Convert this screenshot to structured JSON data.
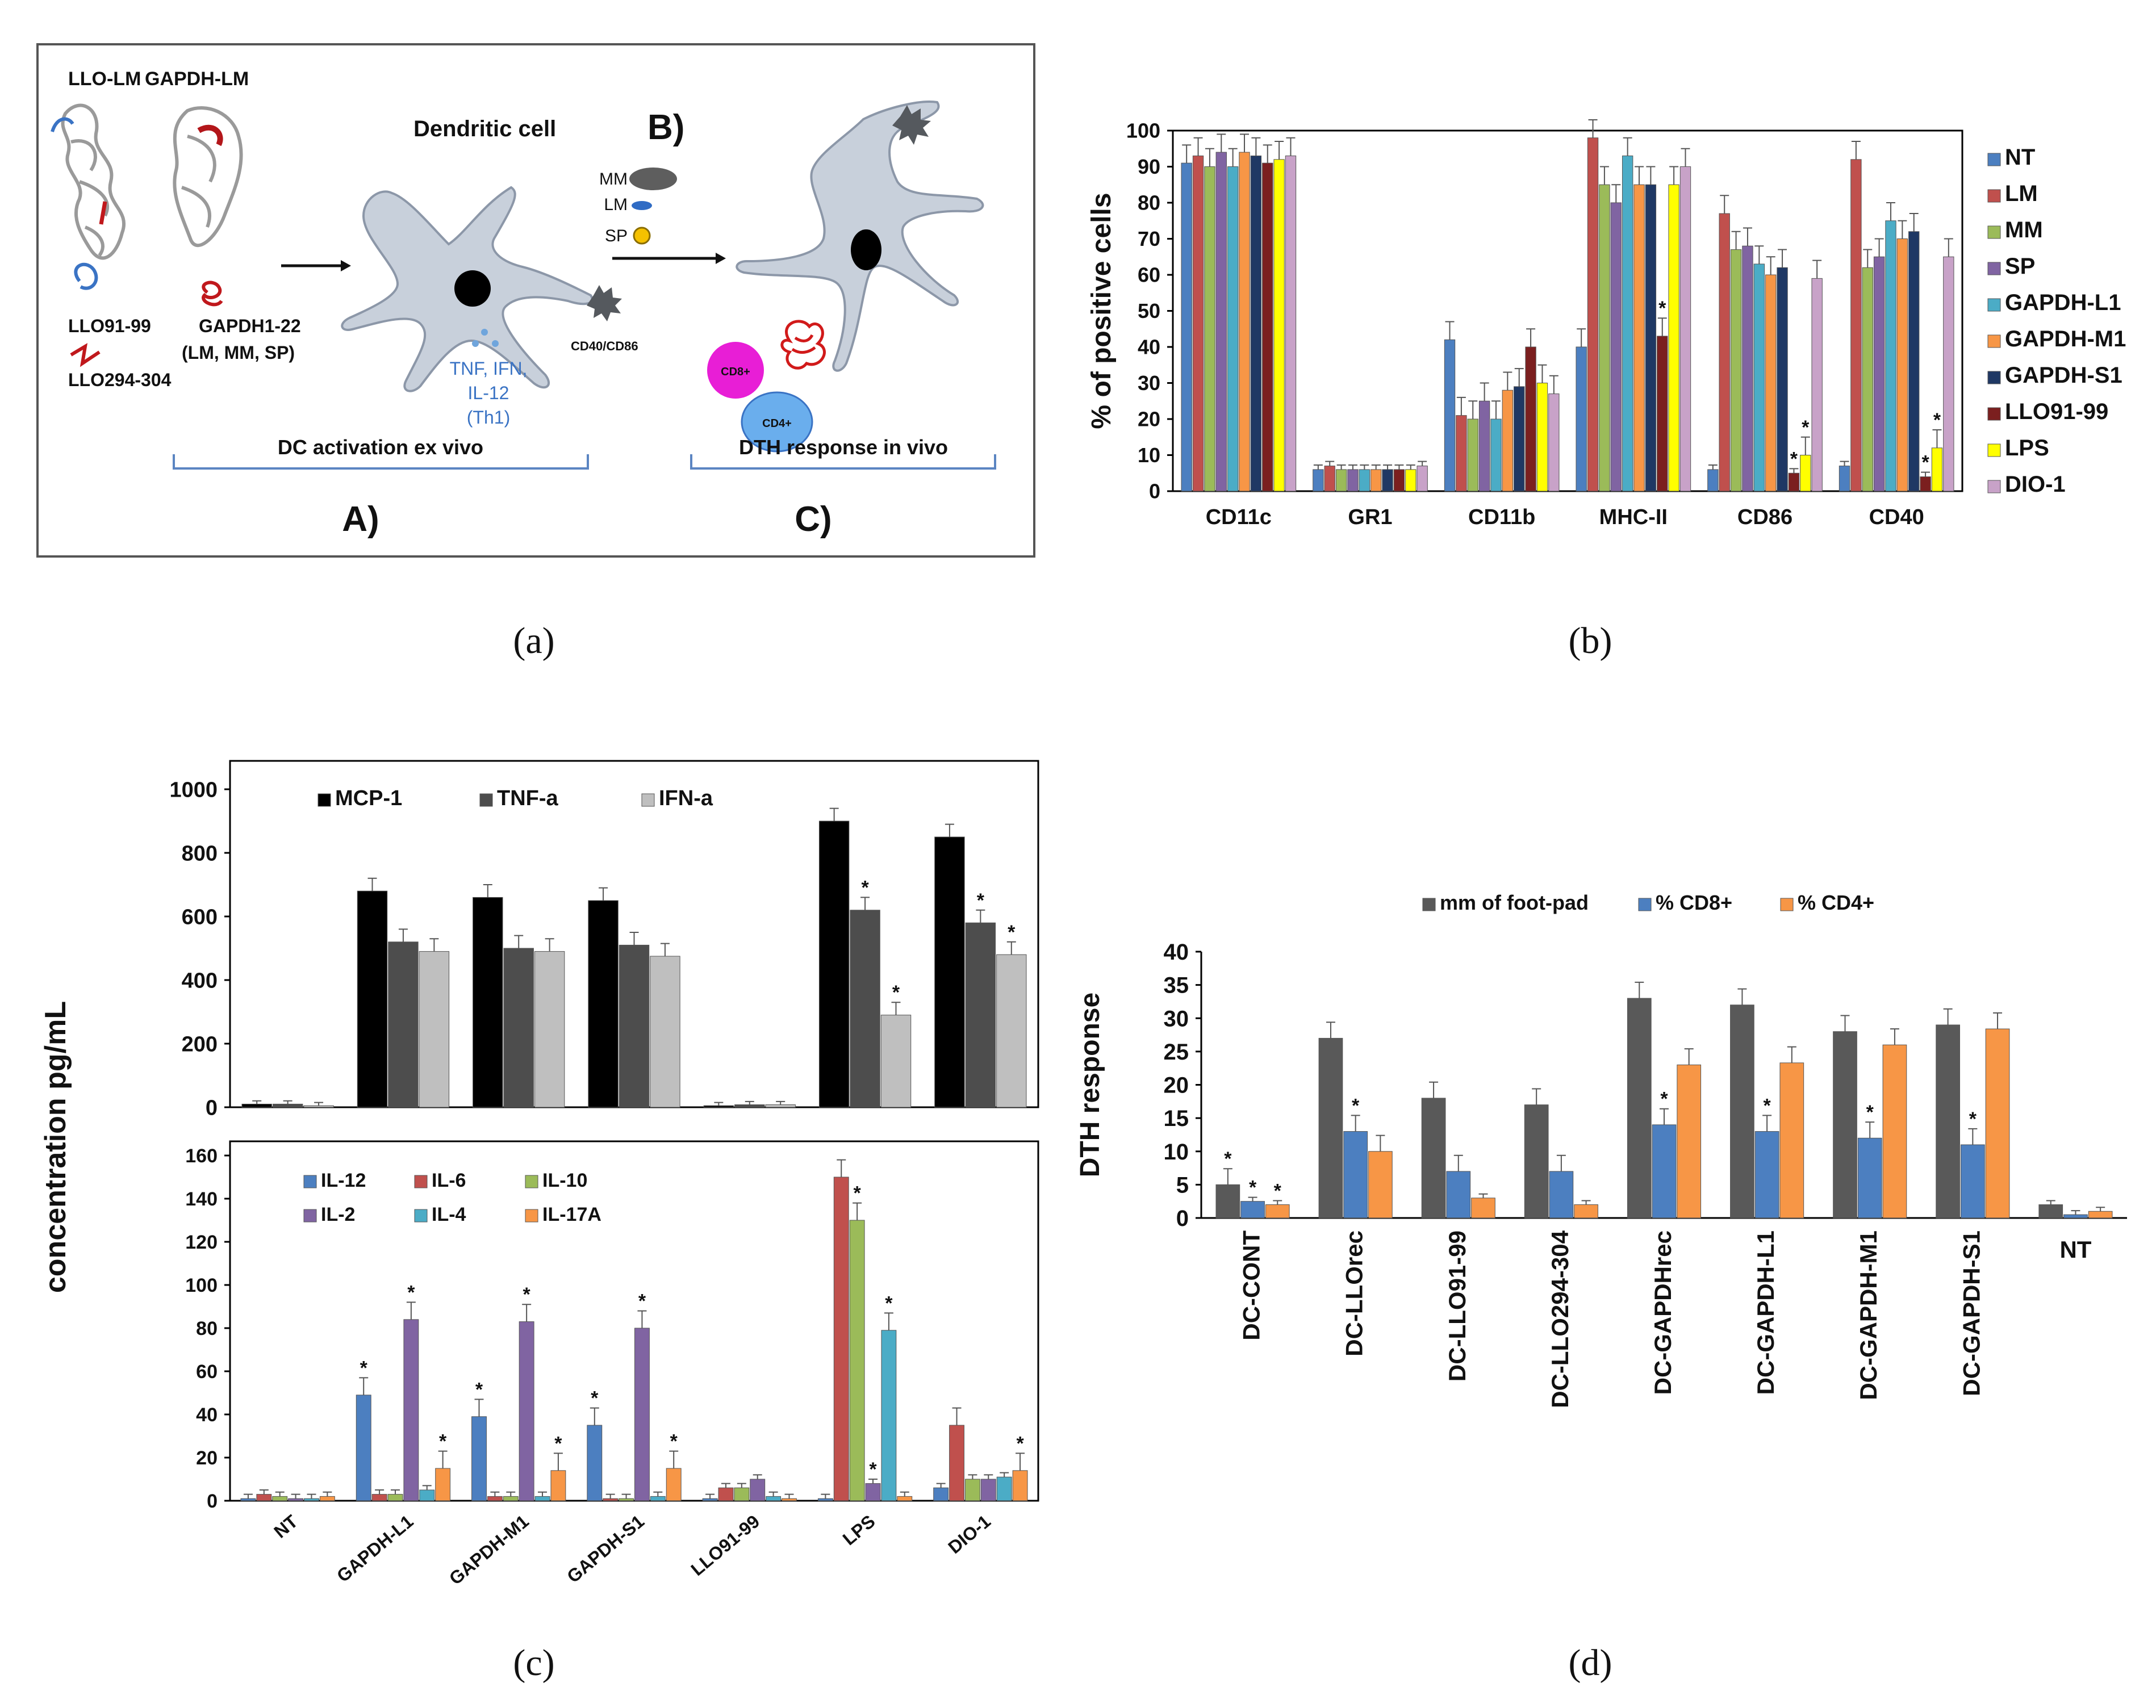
{
  "panel_labels": [
    "(a)",
    "(b)",
    "(c)",
    "(d)"
  ],
  "panel_a": {
    "lm_labels": [
      "LLO-LM",
      "GAPDH-LM"
    ],
    "peptides": [
      "LLO91-99",
      "LLO294-304",
      "GAPDH1-22",
      "(LM, MM, SP)"
    ],
    "dc_title": "Dendritic cell",
    "step_b": "B)",
    "vaccine_legend": [
      "MM",
      "LM",
      "SP"
    ],
    "markers": "CD40/CD86",
    "cytokines": [
      "TNF, IFN,",
      "IL-12",
      "(Th1)"
    ],
    "cells": [
      "CD8+",
      "CD4+"
    ],
    "sections": [
      "DC activation ex vivo",
      "DTH response in vivo"
    ],
    "steps": [
      "A)",
      "C)"
    ],
    "colors": {
      "red": "#c0181c",
      "blue": "#3a73c4",
      "magenta": "#e81ed6",
      "yellow": "#f5c100"
    }
  },
  "chart_data": [
    {
      "id": "b",
      "type": "bar",
      "ylabel": "% of positive cells",
      "ylim": [
        0,
        100
      ],
      "yticks": [
        0,
        10,
        20,
        30,
        40,
        50,
        60,
        70,
        80,
        90,
        100
      ],
      "categories": [
        "CD11c",
        "GR1",
        "CD11b",
        "MHC-II",
        "CD86",
        "CD40"
      ],
      "legend_position": "right",
      "series": [
        {
          "name": "NT",
          "color": "#4c7fc0",
          "values": [
            91,
            6,
            42,
            40,
            6,
            7
          ]
        },
        {
          "name": "LM",
          "color": "#c0504d",
          "values": [
            93,
            7,
            21,
            98,
            77,
            92
          ]
        },
        {
          "name": "MM",
          "color": "#9bbb59",
          "values": [
            90,
            6,
            20,
            85,
            67,
            62
          ]
        },
        {
          "name": "SP",
          "color": "#8064a2",
          "values": [
            94,
            6,
            25,
            80,
            68,
            65
          ]
        },
        {
          "name": "GAPDH-L1",
          "color": "#4bacc6",
          "values": [
            90,
            6,
            20,
            93,
            63,
            75
          ]
        },
        {
          "name": "GAPDH-M1",
          "color": "#f79646",
          "values": [
            94,
            6,
            28,
            85,
            60,
            70
          ]
        },
        {
          "name": "GAPDH-S1",
          "color": "#1f3864",
          "values": [
            93,
            6,
            29,
            85,
            62,
            72
          ]
        },
        {
          "name": "LLO91-99",
          "color": "#7b1f1f",
          "values": [
            91,
            6,
            40,
            43,
            5,
            4
          ]
        },
        {
          "name": "LPS",
          "color": "#ffff00",
          "values": [
            92,
            6,
            30,
            85,
            10,
            12
          ]
        },
        {
          "name": "DIO-1",
          "color": "#c8a2c8",
          "values": [
            93,
            7,
            27,
            90,
            59,
            65
          ]
        }
      ],
      "significance": [
        [
          7,
          3
        ],
        [
          7,
          4
        ],
        [
          8,
          4
        ],
        [
          7,
          5
        ],
        [
          8,
          5
        ]
      ]
    },
    {
      "id": "c-top",
      "type": "bar",
      "ylabel": "concentration pg/mL",
      "ylim": [
        0,
        1000
      ],
      "yticks": [
        0,
        200,
        400,
        600,
        800,
        1000
      ],
      "categories": [
        "NT",
        "GAPDH-L1",
        "GAPDH-M1",
        "GAPDH-S1",
        "LLO91-99",
        "LPS",
        "DIO-1"
      ],
      "legend_position": "top",
      "series": [
        {
          "name": "MCP-1",
          "color": "#000000",
          "values": [
            10,
            680,
            660,
            650,
            5,
            900,
            850
          ]
        },
        {
          "name": "TNF-a",
          "color": "#4d4d4d",
          "values": [
            10,
            520,
            500,
            510,
            8,
            620,
            580
          ]
        },
        {
          "name": "IFN-a",
          "color": "#bfbfbf",
          "values": [
            5,
            490,
            490,
            475,
            8,
            290,
            480
          ]
        }
      ],
      "significance": [
        [
          1,
          5
        ],
        [
          2,
          5
        ],
        [
          1,
          6
        ],
        [
          2,
          6
        ]
      ]
    },
    {
      "id": "c-bottom",
      "type": "bar",
      "ylim": [
        0,
        160
      ],
      "yticks": [
        0,
        20,
        40,
        60,
        80,
        100,
        120,
        140,
        160
      ],
      "categories": [
        "NT",
        "GAPDH-L1",
        "GAPDH-M1",
        "GAPDH-S1",
        "LLO91-99",
        "LPS",
        "DIO-1"
      ],
      "legend_position": "top-left",
      "series": [
        {
          "name": "IL-12",
          "color": "#4c7fc0",
          "values": [
            1,
            49,
            39,
            35,
            1,
            1,
            6
          ]
        },
        {
          "name": "IL-6",
          "color": "#c0504d",
          "values": [
            3,
            3,
            2,
            1,
            6,
            150,
            35
          ]
        },
        {
          "name": "IL-10",
          "color": "#9bbb59",
          "values": [
            2,
            3,
            2,
            1,
            6,
            130,
            10
          ]
        },
        {
          "name": "IL-2",
          "color": "#8064a2",
          "values": [
            1,
            84,
            83,
            80,
            10,
            8,
            10
          ]
        },
        {
          "name": "IL-4",
          "color": "#4bacc6",
          "values": [
            1,
            5,
            2,
            2,
            2,
            79,
            11
          ]
        },
        {
          "name": "IL-17A",
          "color": "#f79646",
          "values": [
            2,
            15,
            14,
            15,
            1,
            2,
            14
          ]
        }
      ],
      "significance": [
        [
          0,
          1
        ],
        [
          3,
          1
        ],
        [
          5,
          1
        ],
        [
          0,
          2
        ],
        [
          3,
          2
        ],
        [
          5,
          2
        ],
        [
          0,
          3
        ],
        [
          3,
          3
        ],
        [
          5,
          3
        ],
        [
          2,
          5
        ],
        [
          3,
          5
        ],
        [
          4,
          5
        ],
        [
          5,
          6
        ]
      ]
    },
    {
      "id": "d",
      "type": "bar",
      "ylabel": "DTH response",
      "ylim": [
        0,
        40
      ],
      "yticks": [
        0,
        5,
        10,
        15,
        20,
        25,
        30,
        35,
        40
      ],
      "categories": [
        "DC-CONT",
        "DC-LLOrec",
        "DC-LLO91-99",
        "DC-LLO294-304",
        "DC-GAPDHrec",
        "DC-GAPDH-L1",
        "DC-GAPDH-M1",
        "DC-GAPDH-S1",
        "NT"
      ],
      "legend_position": "top",
      "series": [
        {
          "name": "mm of foot-pad",
          "color": "#595959",
          "values": [
            5,
            27,
            18,
            17,
            33,
            32,
            28,
            29,
            2
          ]
        },
        {
          "name": "% CD8+",
          "color": "#4c7fc0",
          "values": [
            2.5,
            13,
            7,
            7,
            14,
            13,
            12,
            11,
            0.5
          ]
        },
        {
          "name": "% CD4+",
          "color": "#f79646",
          "values": [
            2,
            10,
            3,
            2,
            23,
            23.3,
            26,
            28.4,
            1
          ]
        }
      ],
      "significance": [
        [
          0,
          0
        ],
        [
          1,
          0
        ],
        [
          2,
          0
        ],
        [
          1,
          1
        ],
        [
          1,
          4
        ],
        [
          1,
          5
        ],
        [
          1,
          6
        ],
        [
          1,
          7
        ]
      ]
    }
  ]
}
